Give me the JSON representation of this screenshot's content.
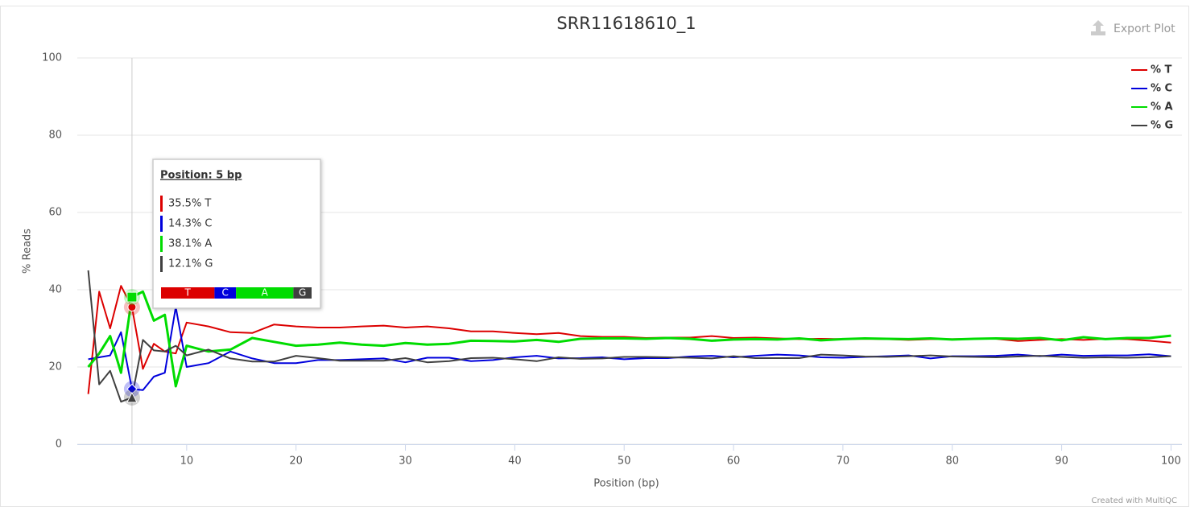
{
  "chart_data": {
    "type": "line",
    "title": "SRR11618610_1",
    "x_label": "Position (bp)",
    "y_label": "% Reads",
    "x": [
      1,
      2,
      3,
      4,
      5,
      6,
      7,
      8,
      9,
      10,
      12,
      14,
      16,
      18,
      20,
      22,
      24,
      26,
      28,
      30,
      32,
      34,
      36,
      38,
      40,
      42,
      44,
      46,
      48,
      50,
      52,
      54,
      56,
      58,
      60,
      62,
      64,
      66,
      68,
      70,
      72,
      74,
      76,
      78,
      80,
      82,
      84,
      86,
      88,
      90,
      92,
      94,
      96,
      98,
      100
    ],
    "series": [
      {
        "name": "% T",
        "color": "#dc0000",
        "values": [
          13,
          39.5,
          30,
          41,
          35.5,
          19.5,
          26,
          24,
          23.5,
          31.5,
          30.5,
          29,
          28.8,
          31,
          30.5,
          30.2,
          30.2,
          30.5,
          30.7,
          30.2,
          30.5,
          30,
          29.2,
          29.2,
          28.8,
          28.5,
          28.8,
          28,
          27.8,
          27.8,
          27.5,
          27.6,
          27.6,
          28,
          27.5,
          27.6,
          27.4,
          27.2,
          27.3,
          27.2,
          27.3,
          27.2,
          27,
          27.2,
          27.2,
          27.3,
          27.3,
          26.7,
          27,
          27.2,
          27,
          27.3,
          27.2,
          26.8,
          26.3
        ]
      },
      {
        "name": "% C",
        "color": "#0000dc",
        "values": [
          22,
          22.5,
          23,
          29,
          14.3,
          14,
          17.5,
          18.5,
          35.5,
          20,
          21,
          24,
          22.2,
          21,
          21,
          21.8,
          21.8,
          22,
          22.2,
          21.2,
          22.4,
          22.4,
          21.5,
          21.8,
          22.5,
          22.9,
          22.2,
          22.3,
          22.5,
          22,
          22.3,
          22.3,
          22.7,
          22.9,
          22.5,
          22.9,
          23.2,
          23,
          22.5,
          22.4,
          22.6,
          22.8,
          23,
          22.2,
          22.8,
          22.8,
          22.9,
          23.2,
          22.8,
          23.2,
          22.9,
          23,
          23,
          23.3,
          22.8
        ]
      },
      {
        "name": "% A",
        "color": "#00dc00",
        "values": [
          20,
          23.5,
          28,
          18.5,
          38.1,
          39.5,
          32,
          33.5,
          15,
          25.5,
          24,
          24.5,
          27.5,
          26.5,
          25.5,
          25.8,
          26.3,
          25.8,
          25.5,
          26.2,
          25.8,
          26,
          26.8,
          26.7,
          26.6,
          27,
          26.5,
          27.3,
          27.4,
          27.4,
          27.3,
          27.5,
          27.3,
          26.8,
          27.1,
          27.2,
          27.1,
          27.4,
          26.9,
          27.2,
          27.4,
          27.3,
          27.2,
          27.4,
          27.1,
          27.3,
          27.4,
          27.3,
          27.5,
          26.9,
          27.7,
          27.2,
          27.5,
          27.5,
          28.1
        ]
      },
      {
        "name": "% G",
        "color": "#404040",
        "values": [
          45,
          15.5,
          19,
          11,
          12.1,
          27,
          24.3,
          24,
          25.5,
          23,
          24.5,
          22.2,
          21.4,
          21.4,
          22.9,
          22.3,
          21.6,
          21.6,
          21.6,
          22.3,
          21.2,
          21.5,
          22.3,
          22.4,
          22,
          21.5,
          22.5,
          22.1,
          22.2,
          22.6,
          22.6,
          22.5,
          22.4,
          22.2,
          22.8,
          22.3,
          22.3,
          22.3,
          23.2,
          23,
          22.7,
          22.6,
          22.8,
          23,
          22.7,
          22.6,
          22.5,
          22.7,
          22.9,
          22.6,
          22.4,
          22.5,
          22.4,
          22.5,
          22.8
        ]
      }
    ],
    "xlim": [
      0,
      101
    ],
    "xticks": [
      10,
      20,
      30,
      40,
      50,
      60,
      70,
      80,
      90,
      100
    ],
    "ylim": [
      0,
      100
    ],
    "yticks": [
      0,
      20,
      40,
      60,
      80,
      100
    ],
    "grid": true,
    "legend_position": "top-right"
  },
  "tooltip": {
    "title": "Position: 5 bp",
    "index": 4,
    "items": [
      "35.5% T",
      "14.3% C",
      "38.1% A",
      "12.1% G"
    ],
    "bar_labels": [
      "T",
      "C",
      "A",
      "G"
    ]
  },
  "ui": {
    "export_button": "Export Plot",
    "credit": "Created with MultiQC"
  }
}
